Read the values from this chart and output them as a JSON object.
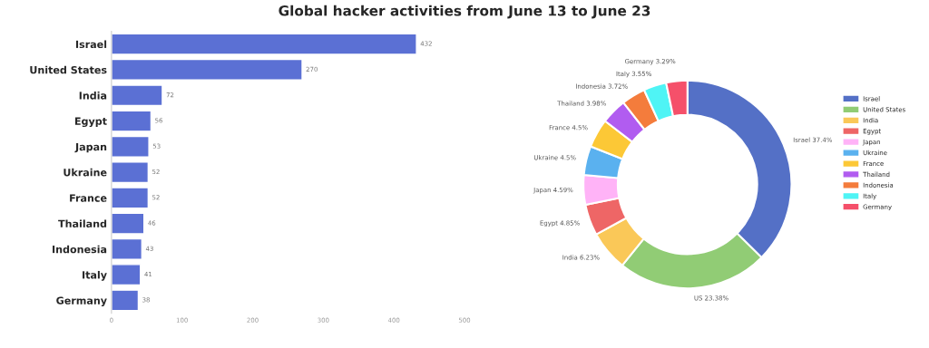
{
  "chart_data": [
    {
      "type": "bar",
      "orientation": "horizontal",
      "title": "Global hacker activities from June 13 to June 23",
      "categories": [
        "Israel",
        "United States",
        "India",
        "Egypt",
        "Japan",
        "Ukraine",
        "France",
        "Thailand",
        "Indonesia",
        "Italy",
        "Germany"
      ],
      "values": [
        432,
        270,
        72,
        56,
        53,
        52,
        52,
        46,
        43,
        41,
        38
      ],
      "color": "#5b70d4",
      "xlim": [
        0,
        500
      ],
      "xticks": [
        0,
        100,
        200,
        300,
        400,
        500
      ],
      "data_labels": true,
      "grid": false
    },
    {
      "type": "donut",
      "categories": [
        "Israel",
        "United States",
        "India",
        "Egypt",
        "Japan",
        "Ukraine",
        "France",
        "Thailand",
        "Indonesia",
        "Italy",
        "Germany"
      ],
      "values": [
        37.4,
        23.38,
        6.23,
        4.85,
        4.59,
        4.5,
        4.5,
        3.98,
        3.72,
        3.55,
        3.29
      ],
      "value_labels": [
        "Israel 37.4%",
        "US 23.38%",
        "India 6.23%",
        "Egypt 4.85%",
        "Japan 4.59%",
        "Ukraine 4.5%",
        "France 4.5%",
        "Thailand 3.98%",
        "Indonesia 3.72%",
        "Italy 3.55%",
        "Germany 3.29%"
      ],
      "colors": [
        "#5470c6",
        "#91cc75",
        "#fac858",
        "#ee6666",
        "#ffb3f7",
        "#5ab1ef",
        "#fcc836",
        "#b15cf0",
        "#f47c3c",
        "#4ff4f5",
        "#f5506a"
      ],
      "legend": "right"
    }
  ]
}
